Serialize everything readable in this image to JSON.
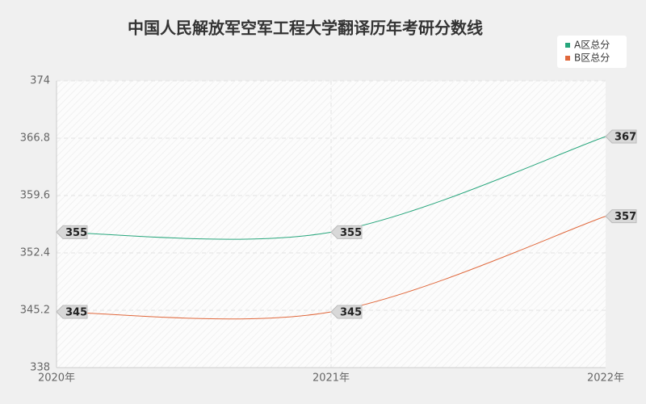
{
  "chart_data": {
    "type": "line",
    "title": "中国人民解放军空军工程大学翻译历年考研分数线",
    "categories": [
      "2020年",
      "2021年",
      "2022年"
    ],
    "series": [
      {
        "name": "A区总分",
        "color": "#27a67c",
        "values": [
          355,
          355,
          367
        ]
      },
      {
        "name": "B区总分",
        "color": "#e0683c",
        "values": [
          345,
          345,
          357
        ]
      }
    ],
    "ylim": [
      338,
      374
    ],
    "yticks": [
      338,
      345.2,
      352.4,
      359.6,
      366.8,
      374
    ],
    "grid": true,
    "legend": "top-right"
  }
}
